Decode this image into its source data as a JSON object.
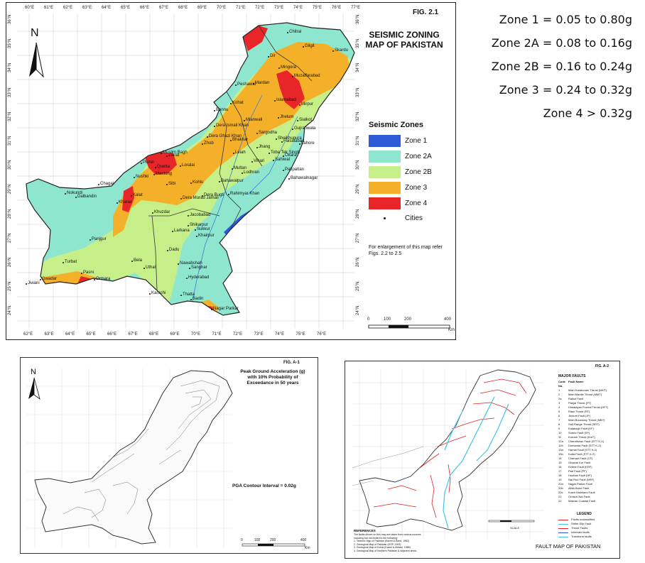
{
  "zone_definitions": [
    "Zone 1 = 0.05 to 0.80g",
    "Zone 2A = 0.08 to 0.16g",
    "Zone 2B = 0.16 to 0.24g",
    "Zone 3 = 0.24 to 0.32g",
    "Zone 4 > 0.32g"
  ],
  "main_map": {
    "fig_label": "FIG. 2.1",
    "title": "SEISMIC ZONING\nMAP OF PAKISTAN",
    "north_label": "N",
    "legend": {
      "title": "Seismic Zones",
      "items": [
        {
          "label": "Zone 1",
          "color": "#2e5bd8"
        },
        {
          "label": "Zone 2A",
          "color": "#8ee6cf"
        },
        {
          "label": "Zone 2B",
          "color": "#c6ef8a"
        },
        {
          "label": "Zone 3",
          "color": "#f5b02a"
        },
        {
          "label": "Zone 4",
          "color": "#e8262a"
        }
      ],
      "cities_label": "Cities"
    },
    "note": "For enlargement of this map refer Figs. 2.2 to 2.5",
    "scale_bar": {
      "labels": [
        "0",
        "100",
        "200",
        "400"
      ],
      "unit": "Km"
    },
    "top_ticks": [
      "60°E",
      "61°E",
      "62°E",
      "63°E",
      "64°E",
      "65°E",
      "66°E",
      "67°E",
      "68°E",
      "69°E",
      "70°E",
      "71°E",
      "72°E",
      "73°E",
      "74°E",
      "75°E",
      "76°E",
      "77°E"
    ],
    "bottom_ticks": [
      "62°E",
      "63°E",
      "64°E",
      "65°E",
      "66°E",
      "67°E",
      "68°E",
      "69°E",
      "70°E",
      "71°E",
      "72°E",
      "73°E",
      "74°E",
      "75°E",
      "76°E"
    ],
    "left_ticks": [
      "36°N",
      "35°N",
      "34°N",
      "33°N",
      "32°N",
      "31°N",
      "30°N",
      "29°N",
      "28°N",
      "27°N",
      "26°N",
      "25°N",
      "24°N"
    ],
    "right_ticks": [
      "36°N",
      "35°N",
      "34°N",
      "33°N",
      "32°N",
      "31°N",
      "30°N",
      "29°N",
      "28°N",
      "27°N",
      "26°N",
      "25°N",
      "24°N"
    ],
    "cities": [
      "Chitral",
      "Gilgit",
      "Skardu",
      "Dir",
      "Mingora",
      "Muzaffarabad",
      "Peshawar",
      "Mardan",
      "Islamabad",
      "Mirpur",
      "Kohat",
      "Bannu",
      "Mianwali",
      "Jhelum",
      "Sialkot",
      "Gujranwala",
      "Lahore",
      "Sargodha",
      "Faisalabad",
      "Sheikhupura",
      "Jhang",
      "Toba Tek Singh",
      "Okara",
      "Sahiwal",
      "Pakpattan",
      "Bahawalnagar",
      "Vihari",
      "Multan",
      "Lodhran",
      "Bahawalpur",
      "Rahimyar Khan",
      "Dera Ghazi Khan",
      "Dera Ismail Khan",
      "Bhakkar",
      "Leiah",
      "Zhob",
      "Loralai",
      "Muslim Bagh",
      "Pishin",
      "Quetta",
      "Ziarat",
      "Sibi",
      "Kohlu",
      "Dera Bugti",
      "Dera Murad Jamali",
      "Kalat",
      "Khuzdar",
      "Kharan",
      "Nokundi",
      "Dalbandin",
      "Chagai",
      "Mastung",
      "Nushki",
      "Jacobabad",
      "Shikarpur",
      "Larkana",
      "Sukkur",
      "Khairpur",
      "Dadu",
      "Nawabshah",
      "Sanghar",
      "Hyderabad",
      "Karachi",
      "Thatta",
      "Badin",
      "Nagar Parkar",
      "Uthal",
      "Bela",
      "Panjgur",
      "Turbat",
      "Pasni",
      "Gwadar",
      "Ormara",
      "Jiwani"
    ]
  },
  "pga_map": {
    "fig_label": "FIG. A-1",
    "title": "Peak Ground Acceleration (g)\nwith 10% Probability of\nExceedance in 50 years",
    "contour_label": "PGA Contour Interval = 0.02g",
    "north_label": "N",
    "scale_bar": {
      "labels": [
        "0",
        "100",
        "200",
        "400"
      ],
      "unit": "Km"
    }
  },
  "fault_map": {
    "fig_label": "FIG. A-2",
    "caption": "FAULT MAP OF PAKISTAN",
    "major_faults_title": "MAJOR FAULTS",
    "faults_header": [
      "Code No.",
      "Fault Name"
    ],
    "faults": [
      [
        "1",
        "Main Karakoram Thrust (MKT)"
      ],
      [
        "2",
        "Main Mantle Thrust (MMT)"
      ],
      [
        "2a",
        "Raikot Fault"
      ],
      [
        "3",
        "Panjal Thrust (PT)"
      ],
      [
        "4",
        "Himalayan Frontal Thrust (HFT)"
      ],
      [
        "5",
        "Riasi Thrust (RT)"
      ],
      [
        "6",
        "Jhelum Fault (JF)"
      ],
      [
        "7",
        "Main Boundary Thrust (MBT)"
      ],
      [
        "8",
        "Salt Range Thrust (SRT)"
      ],
      [
        "9",
        "Kalabagh Fault (KF)"
      ],
      [
        "10",
        "Surkhi Fault (SF)"
      ],
      [
        "11",
        "Kurram Thrust (KmT)"
      ],
      [
        "12a",
        "Chaudhwan Fault (STT K-1)"
      ],
      [
        "12b",
        "Domanda Fault (STT K-2)"
      ],
      [
        "13a",
        "Harnai Fault (STT K-1)"
      ],
      [
        "13b",
        "Kotla Fault (STT K-2)"
      ],
      [
        "14",
        "Chaman Fault (CF)"
      ],
      [
        "15",
        "Ghazab Kor Fault"
      ],
      [
        "16",
        "Kirthar Fault (KRF)"
      ],
      [
        "17",
        "Pab Fault (PF)"
      ],
      [
        "18",
        "Hoshab Fault (HF)"
      ],
      [
        "19",
        "Nai Rud Fault (NRF)"
      ],
      [
        "20a",
        "Nagar Parkar Fault"
      ],
      [
        "20b",
        "Allah Bund Fault"
      ],
      [
        "20c",
        "Kutch Mainland Fault"
      ],
      [
        "21",
        "Ornach-Nal Fault"
      ],
      [
        "22",
        "Makran Coastal Fault"
      ]
    ],
    "legend_title": "LEGEND",
    "legend_items": [
      "Faults unclassified",
      "Strike-Slip Fault",
      "Thrust Faults",
      "Intervals faults",
      "Transform faults"
    ],
    "references_title": "REFERENCES",
    "references": [
      "The faults shown on this map are taken from various sources",
      "including but not limited to the following:",
      "1. Tectonic Map of Pakistan (Kazmi & Rana, 1982)",
      "2. Geological Map of Pakistan (GSP, 1993)",
      "3. Geological Map of Kohat (Kazmi & Abbasi, 1986)",
      "4. Geological Map of Northern Pakistan & adjacent areas"
    ],
    "scale_label": "SCALE"
  }
}
